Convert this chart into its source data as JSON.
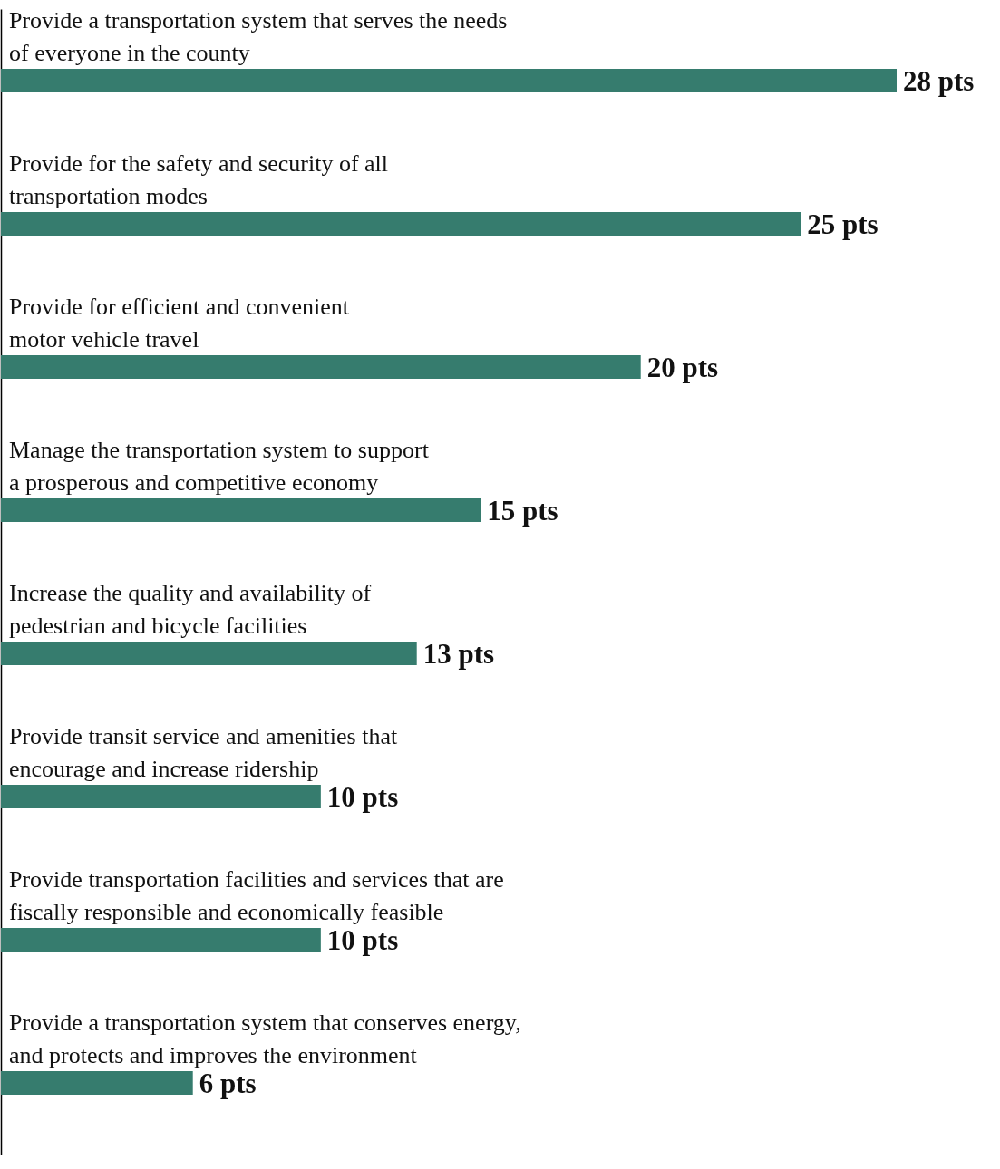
{
  "chart_data": {
    "type": "bar",
    "orientation": "horizontal",
    "categories": [
      "Provide a transportation system that serves the needs\nof everyone in the county",
      "Provide for the safety and security of all\ntransportation modes",
      "Provide for efficient and convenient\nmotor vehicle travel",
      "Manage the transportation system to support\na prosperous and competitive economy",
      "Increase the quality and availability of\npedestrian and bicycle facilities",
      "Provide transit service and amenities that\nencourage and increase ridership",
      "Provide transportation facilities and services that are\nfiscally responsible and economically feasible",
      "Provide a transportation system that conserves energy,\nand protects and improves the environment"
    ],
    "values": [
      28,
      25,
      20,
      15,
      13,
      10,
      10,
      6
    ],
    "value_labels": [
      "28 pts",
      "25 pts",
      "20 pts",
      "15 pts",
      "13 pts",
      "10 pts",
      "10 pts",
      "6 pts"
    ],
    "color": "#367c6e"
  }
}
